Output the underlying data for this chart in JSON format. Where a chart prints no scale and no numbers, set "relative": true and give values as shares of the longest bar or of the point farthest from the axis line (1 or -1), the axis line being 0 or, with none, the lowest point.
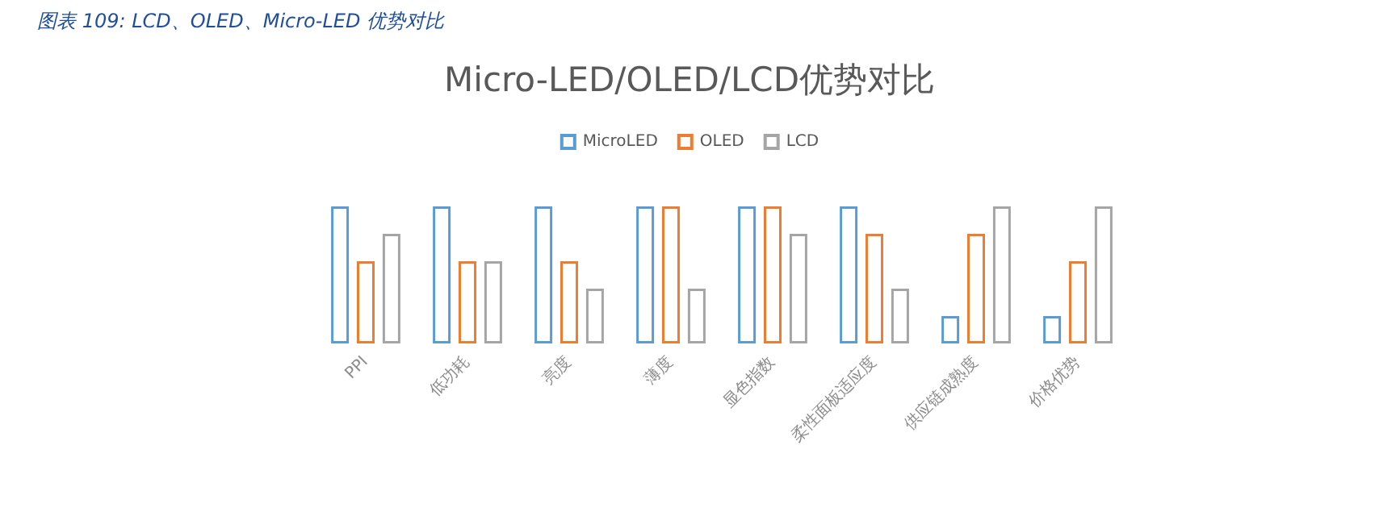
{
  "chart_data": {
    "type": "bar",
    "title": "Micro-LED/OLED/LCD优势对比",
    "annotations": [
      "图表 109: LCD、OLED、Micro-LED 优势对比"
    ],
    "categories": [
      "PPI",
      "低功耗",
      "亮度",
      "薄度",
      "显色指数",
      "柔性面板适应度",
      "供应链成熟度",
      "价格优势"
    ],
    "relative": true,
    "legend": "top",
    "grid": false,
    "series": [
      {
        "name": "MicroLED",
        "color": "#5b9bd5",
        "values": [
          1,
          1,
          1,
          1,
          1,
          1,
          0.2,
          0.2
        ]
      },
      {
        "name": "OLED",
        "color": "#ed7d31",
        "values": [
          0.6,
          0.6,
          0.6,
          1,
          1,
          0.8,
          0.8,
          0.6
        ]
      },
      {
        "name": "LCD",
        "color": "#a5a5a5",
        "values": [
          0.8,
          0.6,
          0.4,
          0.4,
          0.8,
          0.4,
          1,
          1
        ]
      }
    ]
  }
}
